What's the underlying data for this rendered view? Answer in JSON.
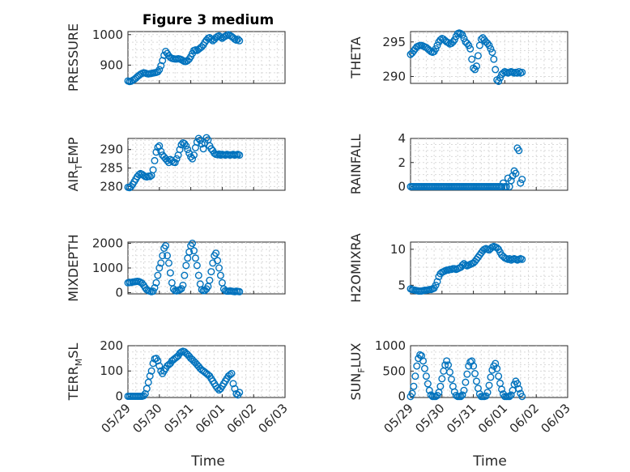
{
  "figure": {
    "title": "Figure 3 medium",
    "xlabel": "Time",
    "xticks": [
      "05/29",
      "05/30",
      "05/31",
      "06/01",
      "06/02",
      "06/03"
    ],
    "marker_color": "#0072BD"
  },
  "chart_data": [
    {
      "type": "scatter",
      "panel": "pressure",
      "ylabel_main": "PRESSURE",
      "ylabel_sub": "",
      "ylim": [
        840,
        1010
      ],
      "yticks": [
        900,
        1000
      ],
      "xlim_days": [
        0,
        5
      ],
      "grid": true,
      "x": [
        0.0,
        0.05,
        0.1,
        0.15,
        0.2,
        0.25,
        0.3,
        0.35,
        0.4,
        0.45,
        0.5,
        0.55,
        0.6,
        0.65,
        0.7,
        0.75,
        0.8,
        0.85,
        0.9,
        0.95,
        1.0,
        1.05,
        1.1,
        1.15,
        1.2,
        1.25,
        1.3,
        1.35,
        1.4,
        1.45,
        1.5,
        1.55,
        1.6,
        1.65,
        1.7,
        1.75,
        1.8,
        1.85,
        1.9,
        1.95,
        2.0,
        2.05,
        2.1,
        2.15,
        2.2,
        2.25,
        2.3,
        2.35,
        2.4,
        2.45,
        2.5,
        2.55,
        2.6,
        2.65,
        2.7,
        2.75,
        2.8,
        2.85,
        2.9,
        2.95,
        3.0,
        3.05,
        3.1,
        3.15,
        3.2,
        3.25,
        3.3,
        3.35,
        3.4,
        3.45,
        3.5,
        3.55
      ],
      "y": [
        848,
        846,
        847,
        850,
        853,
        857,
        862,
        866,
        870,
        873,
        875,
        874,
        872,
        871,
        872,
        873,
        874,
        875,
        876,
        878,
        885,
        898,
        915,
        932,
        945,
        938,
        930,
        925,
        922,
        921,
        920,
        920,
        921,
        920,
        918,
        915,
        912,
        912,
        915,
        920,
        928,
        938,
        948,
        950,
        948,
        952,
        956,
        960,
        966,
        975,
        982,
        988,
        990,
        985,
        980,
        984,
        990,
        994,
        996,
        992,
        988,
        992,
        995,
        998,
        1000,
        997,
        994,
        990,
        985,
        982,
        985,
        980
      ]
    },
    {
      "type": "scatter",
      "panel": "theta",
      "ylabel_main": "THETA",
      "ylabel_sub": "",
      "ylim": [
        289,
        296.5
      ],
      "yticks": [
        290,
        295
      ],
      "xlim_days": [
        0,
        5
      ],
      "grid": true,
      "x": [
        0.0,
        0.05,
        0.1,
        0.15,
        0.2,
        0.25,
        0.3,
        0.35,
        0.4,
        0.45,
        0.5,
        0.55,
        0.6,
        0.65,
        0.7,
        0.75,
        0.8,
        0.85,
        0.9,
        0.95,
        1.0,
        1.05,
        1.1,
        1.15,
        1.2,
        1.25,
        1.3,
        1.35,
        1.4,
        1.45,
        1.5,
        1.55,
        1.6,
        1.65,
        1.7,
        1.75,
        1.8,
        1.85,
        1.9,
        1.95,
        2.0,
        2.05,
        2.1,
        2.15,
        2.2,
        2.25,
        2.3,
        2.35,
        2.4,
        2.45,
        2.5,
        2.55,
        2.6,
        2.65,
        2.7,
        2.75,
        2.8,
        2.85,
        2.9,
        2.95,
        3.0,
        3.05,
        3.1,
        3.15,
        3.2,
        3.25,
        3.3,
        3.35,
        3.4,
        3.45,
        3.5,
        3.55
      ],
      "y": [
        293.2,
        293.4,
        293.7,
        294.0,
        294.3,
        294.4,
        294.5,
        294.5,
        294.4,
        294.3,
        294.2,
        294.0,
        293.8,
        293.6,
        293.5,
        293.6,
        294.0,
        294.5,
        295.0,
        295.3,
        295.5,
        295.4,
        295.2,
        295.0,
        294.9,
        294.7,
        294.8,
        295.0,
        295.3,
        295.8,
        296.2,
        296.3,
        296.2,
        296.0,
        295.5,
        295.0,
        294.8,
        294.5,
        294.0,
        292.5,
        291.2,
        291.0,
        291.5,
        293.0,
        294.5,
        295.4,
        295.6,
        295.3,
        295.0,
        294.8,
        294.5,
        294.0,
        293.5,
        292.5,
        291.0,
        289.5,
        289.3,
        289.8,
        290.3,
        290.5,
        290.7,
        290.6,
        290.5,
        290.6,
        290.7,
        290.6,
        290.5,
        290.6,
        290.5,
        290.7,
        290.5,
        290.6
      ]
    },
    {
      "type": "scatter",
      "panel": "air_temp",
      "ylabel_main": "AIR",
      "ylabel_sub": "T",
      "ylabel_end": "EMP",
      "ylim": [
        279,
        293
      ],
      "yticks": [
        280,
        285,
        290
      ],
      "xlim_days": [
        0,
        5
      ],
      "grid": true,
      "x": [
        0.0,
        0.05,
        0.1,
        0.15,
        0.2,
        0.25,
        0.3,
        0.35,
        0.4,
        0.45,
        0.5,
        0.55,
        0.6,
        0.65,
        0.7,
        0.75,
        0.8,
        0.85,
        0.9,
        0.95,
        1.0,
        1.05,
        1.1,
        1.15,
        1.2,
        1.25,
        1.3,
        1.35,
        1.4,
        1.45,
        1.5,
        1.55,
        1.6,
        1.65,
        1.7,
        1.75,
        1.8,
        1.85,
        1.9,
        1.95,
        2.0,
        2.05,
        2.1,
        2.15,
        2.2,
        2.25,
        2.3,
        2.35,
        2.4,
        2.45,
        2.5,
        2.55,
        2.6,
        2.65,
        2.7,
        2.75,
        2.8,
        2.85,
        2.9,
        2.95,
        3.0,
        3.05,
        3.1,
        3.15,
        3.2,
        3.25,
        3.3,
        3.35,
        3.4,
        3.45,
        3.5,
        3.55
      ],
      "y": [
        279.8,
        279.7,
        280.0,
        280.6,
        281.3,
        282.0,
        282.7,
        283.2,
        283.5,
        283.3,
        283.0,
        282.7,
        282.6,
        282.8,
        282.7,
        283.0,
        284.5,
        287.0,
        289.3,
        290.6,
        291.0,
        289.5,
        288.5,
        288.0,
        287.5,
        287.0,
        286.5,
        287.3,
        287.0,
        286.6,
        286.5,
        287.5,
        288.5,
        290.0,
        291.3,
        291.8,
        291.6,
        291.0,
        290.0,
        289.0,
        288.0,
        287.5,
        288.5,
        290.5,
        292.0,
        293.0,
        292.5,
        291.5,
        290.2,
        291.8,
        293.2,
        292.6,
        291.0,
        290.2,
        289.7,
        289.0,
        288.7,
        288.6,
        288.8,
        288.5,
        288.7,
        288.6,
        288.5,
        288.7,
        288.6,
        288.5,
        288.6,
        288.7,
        288.5,
        288.6,
        288.7,
        288.5
      ]
    },
    {
      "type": "scatter",
      "panel": "rainfall",
      "ylabel_main": "RAINFALL",
      "ylabel_sub": "",
      "ylim": [
        -0.3,
        4
      ],
      "yticks": [
        0,
        2,
        4
      ],
      "xlim_days": [
        0,
        5
      ],
      "grid": true,
      "x": [
        0.0,
        0.05,
        0.1,
        0.15,
        0.2,
        0.25,
        0.3,
        0.35,
        0.4,
        0.45,
        0.5,
        0.55,
        0.6,
        0.65,
        0.7,
        0.75,
        0.8,
        0.85,
        0.9,
        0.95,
        1.0,
        1.05,
        1.1,
        1.15,
        1.2,
        1.25,
        1.3,
        1.35,
        1.4,
        1.45,
        1.5,
        1.55,
        1.6,
        1.65,
        1.7,
        1.75,
        1.8,
        1.85,
        1.9,
        1.95,
        2.0,
        2.05,
        2.1,
        2.15,
        2.2,
        2.25,
        2.3,
        2.35,
        2.4,
        2.45,
        2.5,
        2.55,
        2.6,
        2.65,
        2.7,
        2.75,
        2.8,
        2.85,
        2.9,
        2.95,
        3.0,
        3.05,
        3.1,
        3.15,
        3.2,
        3.25,
        3.3,
        3.35,
        3.4,
        3.45,
        3.5,
        3.55
      ],
      "y": [
        0,
        0,
        0,
        0,
        0,
        0,
        0,
        0,
        0,
        0,
        0,
        0,
        0,
        0,
        0,
        0,
        0,
        0,
        0,
        0,
        0,
        0,
        0,
        0,
        0,
        0,
        0,
        0,
        0,
        0,
        0,
        0,
        0,
        0,
        0,
        0,
        0,
        0,
        0,
        0,
        0,
        0,
        0,
        0,
        0,
        0,
        0,
        0,
        0,
        0,
        0,
        0,
        0,
        0,
        0,
        0,
        0,
        0,
        0,
        0.3,
        0,
        0,
        0.7,
        0,
        0.5,
        0.9,
        1.3,
        1.1,
        3.2,
        3.0,
        0.3,
        0.6
      ]
    },
    {
      "type": "scatter",
      "panel": "mixdepth",
      "ylabel_main": "MIXDEPTH",
      "ylabel_sub": "",
      "ylim": [
        -50,
        2050
      ],
      "yticks": [
        0,
        1000,
        2000
      ],
      "xlim_days": [
        0,
        5
      ],
      "grid": true,
      "x": [
        0.0,
        0.05,
        0.1,
        0.15,
        0.2,
        0.25,
        0.3,
        0.35,
        0.4,
        0.45,
        0.5,
        0.55,
        0.6,
        0.65,
        0.7,
        0.75,
        0.8,
        0.85,
        0.9,
        0.95,
        1.0,
        1.05,
        1.1,
        1.15,
        1.2,
        1.25,
        1.3,
        1.35,
        1.4,
        1.45,
        1.5,
        1.55,
        1.6,
        1.65,
        1.7,
        1.75,
        1.8,
        1.85,
        1.9,
        1.95,
        2.0,
        2.05,
        2.1,
        2.15,
        2.2,
        2.25,
        2.3,
        2.35,
        2.4,
        2.45,
        2.5,
        2.55,
        2.6,
        2.65,
        2.7,
        2.75,
        2.8,
        2.85,
        2.9,
        2.95,
        3.0,
        3.05,
        3.1,
        3.15,
        3.2,
        3.25,
        3.3,
        3.35,
        3.4,
        3.45,
        3.5,
        3.55
      ],
      "y": [
        400,
        420,
        410,
        430,
        440,
        450,
        460,
        450,
        420,
        380,
        300,
        200,
        120,
        80,
        60,
        40,
        60,
        200,
        400,
        700,
        1000,
        1200,
        1500,
        1800,
        1900,
        1500,
        1200,
        800,
        400,
        150,
        80,
        70,
        90,
        120,
        160,
        300,
        700,
        1100,
        1400,
        1650,
        1900,
        2000,
        1700,
        1400,
        1100,
        700,
        350,
        120,
        80,
        90,
        150,
        250,
        500,
        850,
        1200,
        1500,
        1600,
        1300,
        1000,
        700,
        400,
        150,
        80,
        60,
        60,
        70,
        60,
        50,
        40,
        60,
        50,
        40
      ]
    },
    {
      "type": "scatter",
      "panel": "h2omixra",
      "ylabel_main": "H2OMIXRA",
      "ylabel_sub": "",
      "ylim": [
        3.8,
        11
      ],
      "yticks": [
        5,
        10
      ],
      "xlim_days": [
        0,
        5
      ],
      "grid": true,
      "x": [
        0.0,
        0.05,
        0.1,
        0.15,
        0.2,
        0.25,
        0.3,
        0.35,
        0.4,
        0.45,
        0.5,
        0.55,
        0.6,
        0.65,
        0.7,
        0.75,
        0.8,
        0.85,
        0.9,
        0.95,
        1.0,
        1.05,
        1.1,
        1.15,
        1.2,
        1.25,
        1.3,
        1.35,
        1.4,
        1.45,
        1.5,
        1.55,
        1.6,
        1.65,
        1.7,
        1.75,
        1.8,
        1.85,
        1.9,
        1.95,
        2.0,
        2.05,
        2.1,
        2.15,
        2.2,
        2.25,
        2.3,
        2.35,
        2.4,
        2.45,
        2.5,
        2.55,
        2.6,
        2.65,
        2.7,
        2.75,
        2.8,
        2.85,
        2.9,
        2.95,
        3.0,
        3.05,
        3.1,
        3.15,
        3.2,
        3.25,
        3.3,
        3.35,
        3.4,
        3.45,
        3.5,
        3.55
      ],
      "y": [
        4.5,
        4.4,
        4.35,
        4.3,
        4.25,
        4.2,
        4.2,
        4.2,
        4.25,
        4.3,
        4.3,
        4.35,
        4.4,
        4.4,
        4.5,
        4.6,
        5.0,
        5.5,
        6.2,
        6.6,
        6.8,
        6.9,
        7.0,
        7.1,
        7.1,
        7.2,
        7.2,
        7.3,
        7.3,
        7.2,
        7.3,
        7.4,
        7.5,
        7.8,
        8.0,
        7.8,
        7.7,
        7.8,
        7.9,
        8.0,
        8.1,
        8.3,
        8.6,
        8.9,
        9.2,
        9.5,
        9.8,
        10.0,
        10.1,
        10.0,
        9.9,
        10.1,
        10.3,
        10.4,
        10.3,
        10.2,
        10.0,
        9.6,
        9.2,
        9.0,
        8.8,
        8.7,
        8.6,
        8.7,
        8.5,
        8.6,
        8.7,
        8.6,
        8.5,
        8.6,
        8.7,
        8.6
      ]
    },
    {
      "type": "scatter",
      "panel": "terr_msl",
      "ylabel_main": "TERR",
      "ylabel_sub": "M",
      "ylabel_end": "SL",
      "ylim": [
        -5,
        200
      ],
      "yticks": [
        0,
        100,
        200
      ],
      "xlim_days": [
        0,
        5
      ],
      "grid": true,
      "x": [
        0.0,
        0.05,
        0.1,
        0.15,
        0.2,
        0.25,
        0.3,
        0.35,
        0.4,
        0.45,
        0.5,
        0.55,
        0.6,
        0.65,
        0.7,
        0.75,
        0.8,
        0.85,
        0.9,
        0.95,
        1.0,
        1.05,
        1.1,
        1.15,
        1.2,
        1.25,
        1.3,
        1.35,
        1.4,
        1.45,
        1.5,
        1.55,
        1.6,
        1.65,
        1.7,
        1.75,
        1.8,
        1.85,
        1.9,
        1.95,
        2.0,
        2.05,
        2.1,
        2.15,
        2.2,
        2.25,
        2.3,
        2.35,
        2.4,
        2.45,
        2.5,
        2.55,
        2.6,
        2.65,
        2.7,
        2.75,
        2.8,
        2.85,
        2.9,
        2.95,
        3.0,
        3.05,
        3.1,
        3.15,
        3.2,
        3.25,
        3.3,
        3.35,
        3.4,
        3.45,
        3.5,
        3.55
      ],
      "y": [
        0,
        0,
        0,
        0,
        0,
        0,
        0,
        0,
        0,
        0,
        2,
        10,
        30,
        55,
        80,
        100,
        130,
        148,
        150,
        140,
        120,
        100,
        90,
        100,
        110,
        120,
        125,
        130,
        140,
        145,
        150,
        155,
        160,
        170,
        175,
        178,
        176,
        170,
        165,
        158,
        150,
        145,
        138,
        132,
        125,
        118,
        110,
        104,
        100,
        95,
        90,
        85,
        80,
        70,
        60,
        50,
        40,
        32,
        25,
        30,
        40,
        50,
        60,
        70,
        80,
        85,
        90,
        50,
        30,
        10,
        5,
        15
      ]
    },
    {
      "type": "scatter",
      "panel": "sun_flux",
      "ylabel_main": "SUN",
      "ylabel_sub": "F",
      "ylabel_end": "LUX",
      "ylim": [
        -20,
        1000
      ],
      "yticks": [
        0,
        500,
        1000
      ],
      "xlim_days": [
        0,
        5
      ],
      "grid": true,
      "x": [
        0.0,
        0.05,
        0.1,
        0.15,
        0.2,
        0.25,
        0.3,
        0.35,
        0.4,
        0.45,
        0.5,
        0.55,
        0.6,
        0.65,
        0.7,
        0.75,
        0.8,
        0.85,
        0.9,
        0.95,
        1.0,
        1.05,
        1.1,
        1.15,
        1.2,
        1.25,
        1.3,
        1.35,
        1.4,
        1.45,
        1.5,
        1.55,
        1.6,
        1.65,
        1.7,
        1.75,
        1.8,
        1.85,
        1.9,
        1.95,
        2.0,
        2.05,
        2.1,
        2.15,
        2.2,
        2.25,
        2.3,
        2.35,
        2.4,
        2.45,
        2.5,
        2.55,
        2.6,
        2.65,
        2.7,
        2.75,
        2.8,
        2.85,
        2.9,
        2.95,
        3.0,
        3.05,
        3.1,
        3.15,
        3.2,
        3.25,
        3.3,
        3.35,
        3.4,
        3.45,
        3.5,
        3.55
      ],
      "y": [
        0,
        60,
        200,
        400,
        600,
        750,
        820,
        800,
        700,
        550,
        400,
        250,
        120,
        30,
        0,
        0,
        0,
        20,
        80,
        200,
        350,
        500,
        620,
        700,
        620,
        480,
        340,
        200,
        90,
        20,
        0,
        0,
        0,
        30,
        120,
        280,
        440,
        600,
        680,
        700,
        600,
        450,
        300,
        160,
        50,
        0,
        0,
        0,
        10,
        80,
        220,
        380,
        520,
        600,
        650,
        550,
        400,
        260,
        140,
        50,
        0,
        0,
        0,
        0,
        30,
        120,
        240,
        300,
        250,
        150,
        60,
        0
      ]
    }
  ]
}
